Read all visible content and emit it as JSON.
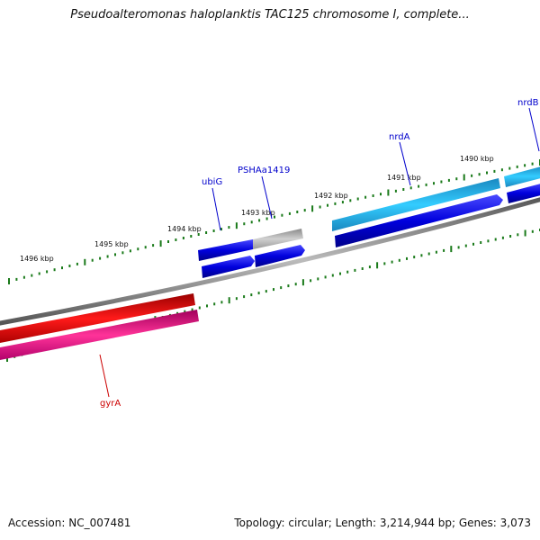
{
  "title": "Pseudoalteromonas haloplanktis TAC125 chromosome I, complete...",
  "footer": {
    "accession": "Accession: NC_007481",
    "summary": "Topology: circular; Length: 3,214,944 bp; Genes: 3,073"
  },
  "scale_labels": [
    "1496 kbp",
    "1495 kbp",
    "1494 kbp",
    "1493 kbp",
    "1492 kbp",
    "1491 kbp",
    "1490 kbp"
  ],
  "genes": [
    {
      "name": "ubiG",
      "color": "#0000cc"
    },
    {
      "name": "PSHAa1419",
      "color": "#0000cc"
    },
    {
      "name": "nrdA",
      "color": "#0000cc"
    },
    {
      "name": "nrdB",
      "color": "#0000cc"
    },
    {
      "name": "gyrA",
      "color": "#cc0000"
    }
  ],
  "colors": {
    "backbone": "#7a7a7a",
    "tick": "#1a7a1a",
    "cds_blue": "#0000dd",
    "cds_cyan": "#22aadd",
    "cds_gray": "#aaaaaa",
    "cds_red": "#dd0000",
    "cds_pink": "#e0107a"
  }
}
